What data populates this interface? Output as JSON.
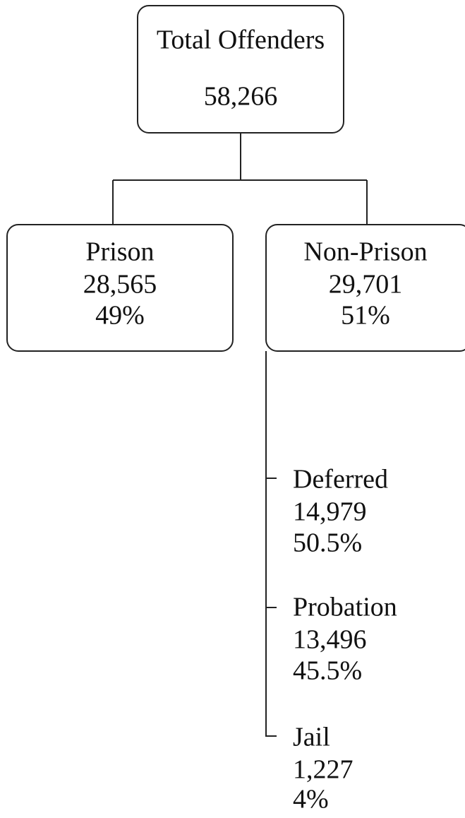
{
  "root": {
    "label": "Total Offenders",
    "count": "58,266"
  },
  "nodes": [
    {
      "label": "Prison",
      "count": "28,565",
      "percent": "49%"
    },
    {
      "label": "Non-Prison",
      "count": "29,701",
      "percent": "51%"
    }
  ],
  "children": [
    {
      "label": "Deferred",
      "count": "14,979",
      "percent": "50.5%"
    },
    {
      "label": "Probation",
      "count": "13,496",
      "percent": "45.5%"
    },
    {
      "label": "Jail",
      "count": "1,227",
      "percent": "4%"
    }
  ]
}
